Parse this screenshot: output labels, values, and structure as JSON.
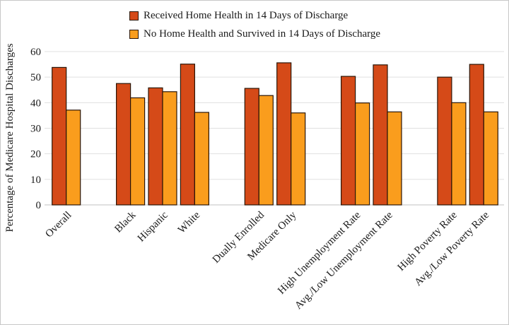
{
  "chart_data": {
    "type": "bar",
    "title": "",
    "xlabel": "",
    "ylabel": "Percentage of Medicare Hospital Discharges",
    "ylim": [
      0,
      60
    ],
    "ytick_step": 10,
    "grid": true,
    "legend_position": "top-center",
    "categories": [
      "Overall",
      "Black",
      "Hispanic",
      "White",
      "Dually Enrolled",
      "Medicare Only",
      "High Unemployment Rate",
      "Avg./Low Unemployment Rate",
      "High Poverty Rate",
      "Avg./Low Poverty Rate"
    ],
    "category_clusters": [
      [
        0
      ],
      [
        1,
        2,
        3
      ],
      [
        4,
        5
      ],
      [
        6,
        7
      ],
      [
        8,
        9
      ]
    ],
    "series": [
      {
        "name": "Received Home Health in 14 Days of Discharge",
        "color": "#D54A18",
        "values": [
          53.8,
          47.5,
          45.8,
          55.1,
          45.6,
          55.6,
          50.3,
          54.8,
          50.0,
          55.0
        ]
      },
      {
        "name": "No Home Health and Survived in 14 Days of Discharge",
        "color": "#FA9D1D",
        "values": [
          37.1,
          41.9,
          44.3,
          36.2,
          42.8,
          36.0,
          39.9,
          36.4,
          40.0,
          36.4
        ]
      }
    ],
    "bar_border_color": "#2B1608",
    "gridline_color": "#E0E0E0",
    "axis_line_color": "#C0C0C0",
    "text_color": "#1A1A1A"
  }
}
